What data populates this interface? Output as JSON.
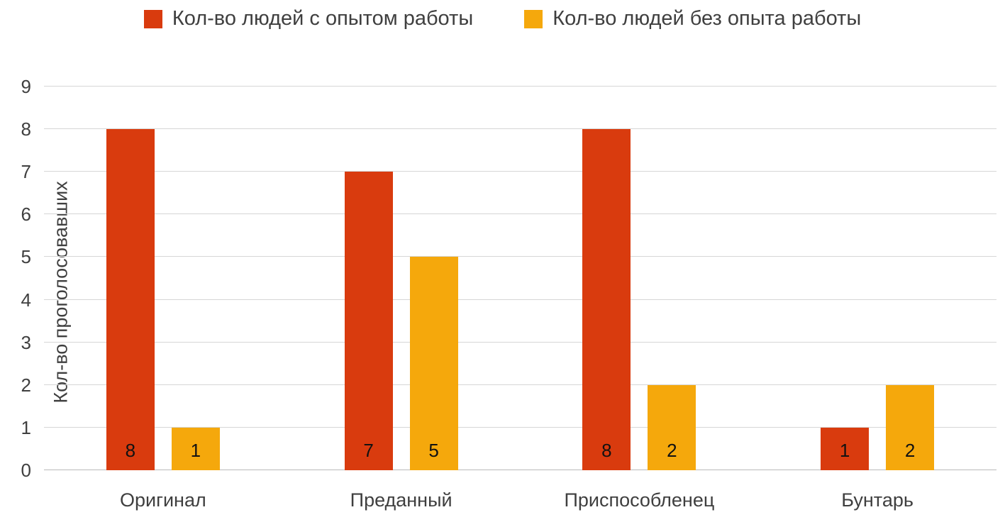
{
  "chart_data": {
    "type": "bar",
    "title": "",
    "xlabel": "",
    "ylabel": "Кол-во проголосовавших",
    "categories": [
      "Оригинал",
      "Преданный",
      "Приспособленец",
      "Бунтарь"
    ],
    "series": [
      {
        "name": "Кол-во людей с опытом работы",
        "color": "#d93b0e",
        "values": [
          8,
          7,
          8,
          1
        ]
      },
      {
        "name": "Кол-во людей без опыта работы",
        "color": "#f5a80c",
        "values": [
          1,
          5,
          2,
          2
        ]
      }
    ],
    "yticks": [
      0,
      1,
      2,
      3,
      4,
      5,
      6,
      7,
      8,
      9
    ],
    "ylim": [
      0,
      9
    ],
    "grid": true,
    "legend_position": "top",
    "data_labels": true
  },
  "colors": {
    "gridline": "#d6d6d6",
    "axis_text": "#3f3f3f",
    "data_label_text": "#121212",
    "background": "#ffffff"
  }
}
